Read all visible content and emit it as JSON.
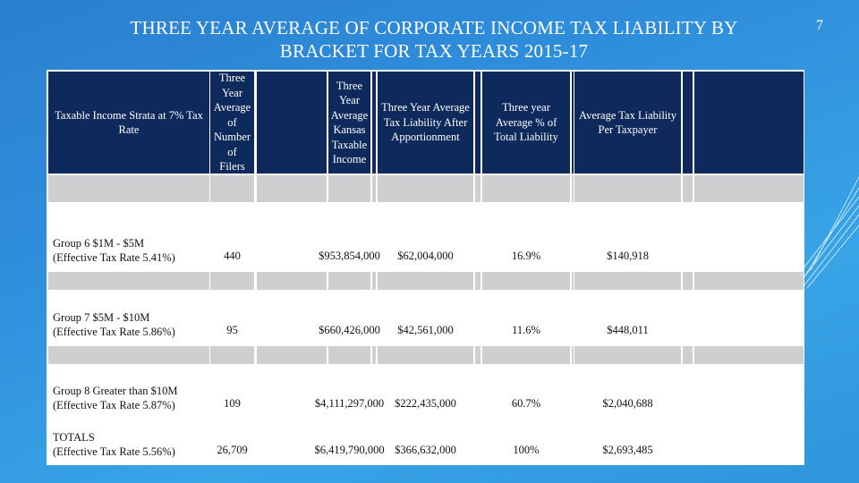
{
  "slide": {
    "title": "THREE YEAR AVERAGE OF CORPORATE INCOME TAX LIABILITY BY BRACKET FOR TAX YEARS 2015-17",
    "page_number": "7"
  },
  "table": {
    "headers": [
      "Taxable Income Strata at 7% Tax Rate",
      "Three Year Average of Number of Filers",
      "Three Year Average Kansas Taxable Income",
      "Three Year Average Tax Liability After Apportionment",
      "Three year Average % of Total Liability",
      "Average Tax Liability Per Taxpayer"
    ],
    "rows": [
      {
        "label_line1": "Group 6 $1M - $5M",
        "label_line2": "(Effective Tax Rate 5.41%)",
        "filers": "440",
        "taxable_income": "$953,854,000",
        "tax_liability": "$62,004,000",
        "pct_total": "16.9%",
        "per_taxpayer": "$140,918"
      },
      {
        "label_line1": "Group 7 $5M - $10M",
        "label_line2": "(Effective Tax Rate 5.86%)",
        "filers": "95",
        "taxable_income": "$660,426,000",
        "tax_liability": "$42,561,000",
        "pct_total": "11.6%",
        "per_taxpayer": "$448,011"
      },
      {
        "label_line1": "Group 8 Greater than $10M",
        "label_line2": "(Effective Tax Rate 5.87%)",
        "filers": "109",
        "taxable_income": "$4,111,297,000",
        "tax_liability": "$222,435,000",
        "pct_total": "60.7%",
        "per_taxpayer": "$2,040,688"
      },
      {
        "label_line1": "TOTALS",
        "label_line2": "(Effective Tax Rate 5.56%)",
        "filers": "26,709",
        "taxable_income": "$6,419,790,000",
        "tax_liability": "$366,632,000",
        "pct_total": "100%",
        "per_taxpayer": "$2,693,485"
      }
    ]
  }
}
